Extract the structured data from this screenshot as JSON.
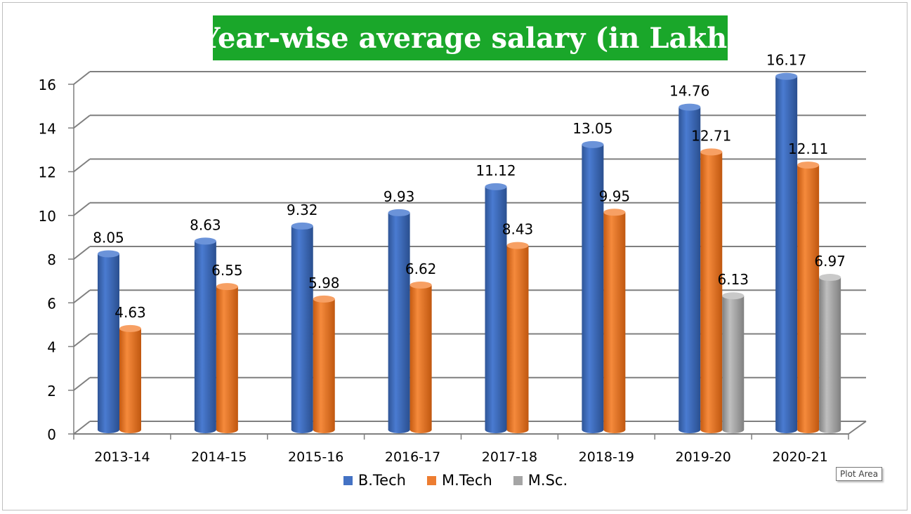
{
  "chart_data": {
    "type": "bar",
    "title": "Year-wise average salary (in Lakh)",
    "categories": [
      "2013-14",
      "2014-15",
      "2015-16",
      "2016-17",
      "2017-18",
      "2018-19",
      "2019-20",
      "2020-21"
    ],
    "series": [
      {
        "name": "B.Tech",
        "color": "#4472c4",
        "values": [
          8.05,
          8.63,
          9.32,
          9.93,
          11.12,
          13.05,
          14.76,
          16.17
        ],
        "labels": [
          "8.05",
          "8.63",
          "9.32",
          "9.93",
          "11.12",
          "13.05",
          "14.76",
          "16.17"
        ]
      },
      {
        "name": "M.Tech",
        "color": "#ed7d31",
        "values": [
          4.63,
          6.55,
          5.98,
          6.62,
          8.43,
          9.95,
          12.71,
          12.11
        ],
        "labels": [
          "4.63",
          "6.55",
          "5.98",
          "6.62",
          "8.43",
          "9.95",
          "12.71",
          "12.11"
        ]
      },
      {
        "name": "M.Sc.",
        "color": "#a5a5a5",
        "values": [
          null,
          null,
          null,
          null,
          null,
          null,
          6.13,
          6.97
        ],
        "labels": [
          "",
          "",
          "",
          "",
          "",
          "",
          "6.13",
          "6.97"
        ]
      }
    ],
    "yticks": [
      "0",
      "2",
      "4",
      "6",
      "8",
      "10",
      "12",
      "14",
      "16"
    ],
    "ylim": [
      0,
      16
    ],
    "grid": true,
    "legend_position": "bottom",
    "bar_shape": "3d-cylinder"
  },
  "tooltip": "Plot Area"
}
